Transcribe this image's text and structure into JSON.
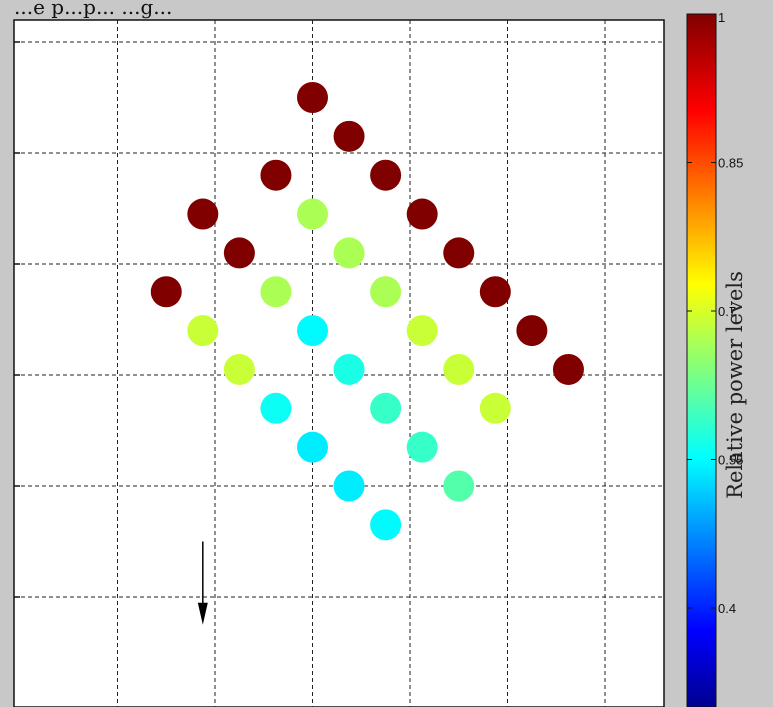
{
  "title_fragment": "...e p...p...                                                ...g...",
  "chart_data": {
    "type": "scatter",
    "grid": true,
    "colormap": "jet",
    "colorbar": {
      "label": "Relative power levels",
      "ticks": [
        "1",
        "0.85",
        "0.7",
        "0.55",
        "0.4"
      ],
      "tick_values": [
        1,
        0.85,
        0.7,
        0.55,
        0.4
      ],
      "range": [
        0.3,
        1.0
      ]
    },
    "points": [
      {
        "x": 3.0,
        "y": 5.5,
        "v": 1.0
      },
      {
        "x": 3.375,
        "y": 5.15,
        "v": 1.0
      },
      {
        "x": 2.625,
        "y": 4.8,
        "v": 1.0
      },
      {
        "x": 3.75,
        "y": 4.8,
        "v": 1.0
      },
      {
        "x": 1.875,
        "y": 4.45,
        "v": 1.0
      },
      {
        "x": 3.0,
        "y": 4.45,
        "v": 0.68
      },
      {
        "x": 4.125,
        "y": 4.45,
        "v": 1.0
      },
      {
        "x": 2.25,
        "y": 4.1,
        "v": 1.0
      },
      {
        "x": 3.375,
        "y": 4.1,
        "v": 0.68
      },
      {
        "x": 4.5,
        "y": 4.1,
        "v": 1.0
      },
      {
        "x": 1.5,
        "y": 3.75,
        "v": 1.0
      },
      {
        "x": 2.625,
        "y": 3.75,
        "v": 0.68
      },
      {
        "x": 3.75,
        "y": 3.75,
        "v": 0.68
      },
      {
        "x": 4.875,
        "y": 3.75,
        "v": 1.0
      },
      {
        "x": 1.875,
        "y": 3.4,
        "v": 0.7
      },
      {
        "x": 3.0,
        "y": 3.4,
        "v": 0.56
      },
      {
        "x": 4.125,
        "y": 3.4,
        "v": 0.7
      },
      {
        "x": 5.25,
        "y": 3.4,
        "v": 1.0
      },
      {
        "x": 2.25,
        "y": 3.05,
        "v": 0.7
      },
      {
        "x": 3.375,
        "y": 3.05,
        "v": 0.58
      },
      {
        "x": 4.5,
        "y": 3.05,
        "v": 0.7
      },
      {
        "x": 5.625,
        "y": 3.05,
        "v": 1.0
      },
      {
        "x": 2.625,
        "y": 2.7,
        "v": 0.57
      },
      {
        "x": 3.75,
        "y": 2.7,
        "v": 0.6
      },
      {
        "x": 4.875,
        "y": 2.7,
        "v": 0.7
      },
      {
        "x": 3.0,
        "y": 2.35,
        "v": 0.55
      },
      {
        "x": 4.125,
        "y": 2.35,
        "v": 0.6
      },
      {
        "x": 3.375,
        "y": 2.0,
        "v": 0.55
      },
      {
        "x": 4.5,
        "y": 2.0,
        "v": 0.62
      },
      {
        "x": 3.75,
        "y": 1.65,
        "v": 0.56
      }
    ],
    "arrow": {
      "x": 1.875,
      "y_from": 1.5,
      "y_to": 0.75
    }
  }
}
